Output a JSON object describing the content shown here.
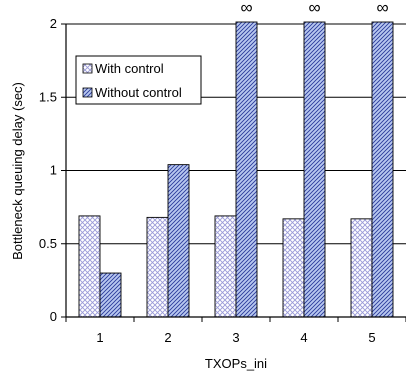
{
  "chart_data": {
    "type": "bar",
    "categories": [
      "1",
      "2",
      "3",
      "4",
      "5"
    ],
    "series": [
      {
        "name": "With control",
        "values": [
          0.69,
          0.68,
          0.69,
          0.67,
          0.67
        ],
        "pattern": "crosshatch"
      },
      {
        "name": "Without control",
        "values": [
          0.3,
          1.04,
          "∞",
          "∞",
          "∞"
        ],
        "pattern": "diagonal"
      }
    ],
    "infinity_symbol": "∞",
    "xlabel": "TXOPs_ini",
    "ylabel": "Bottleneck queuing delay (sec)",
    "ylim": [
      0,
      2
    ],
    "yticks": [
      0,
      0.5,
      1,
      1.5,
      2
    ],
    "ytick_labels": [
      "0",
      "0.5",
      "1",
      "1.5",
      "2"
    ],
    "grid": "horizontal",
    "legend_position": "top-left",
    "colors": {
      "with_control_hatch": "#9a9ad8",
      "without_control_fill": "#b8c8f0",
      "without_control_hatch": "#2a3a9a",
      "bar_outline": "#000000"
    }
  }
}
